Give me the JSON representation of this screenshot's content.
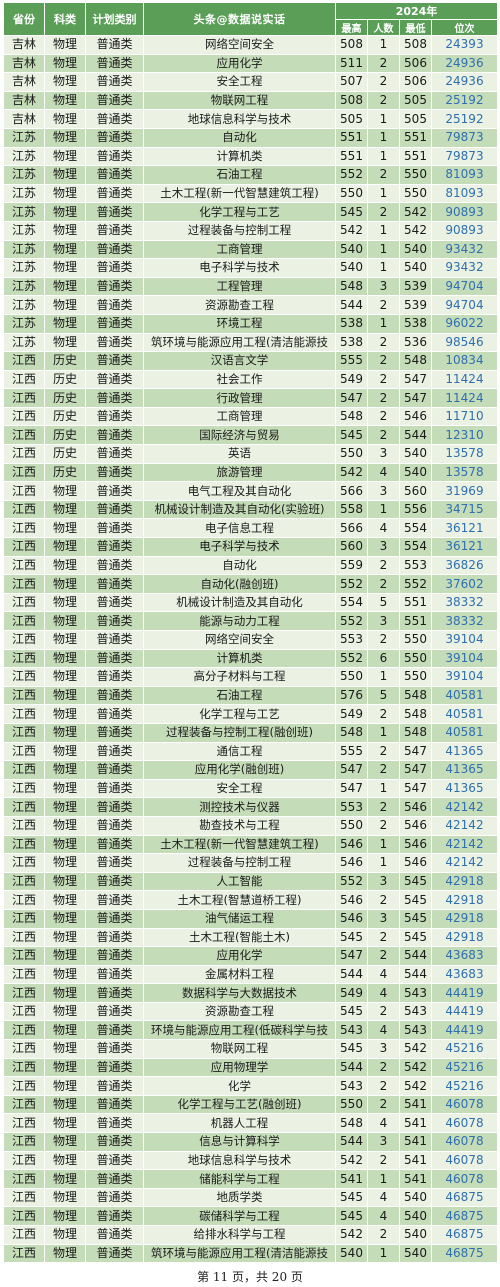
{
  "header": {
    "province": "省份",
    "subject": "科类",
    "plan_type": "计划类别",
    "title": "头条@数据说实话",
    "year": "2024年",
    "max": "最高",
    "count": "人数",
    "min": "最低",
    "rank": "位次"
  },
  "rows": [
    [
      "吉林",
      "物理",
      "普通类",
      "网络空间安全",
      "508",
      "1",
      "508",
      "24393"
    ],
    [
      "吉林",
      "物理",
      "普通类",
      "应用化学",
      "511",
      "2",
      "506",
      "24936"
    ],
    [
      "吉林",
      "物理",
      "普通类",
      "安全工程",
      "507",
      "2",
      "506",
      "24936"
    ],
    [
      "吉林",
      "物理",
      "普通类",
      "物联网工程",
      "508",
      "2",
      "505",
      "25192"
    ],
    [
      "吉林",
      "物理",
      "普通类",
      "地球信息科学与技术",
      "505",
      "1",
      "505",
      "25192"
    ],
    [
      "江苏",
      "物理",
      "普通类",
      "自动化",
      "551",
      "1",
      "551",
      "79873"
    ],
    [
      "江苏",
      "物理",
      "普通类",
      "计算机类",
      "551",
      "1",
      "551",
      "79873"
    ],
    [
      "江苏",
      "物理",
      "普通类",
      "石油工程",
      "552",
      "2",
      "550",
      "81093"
    ],
    [
      "江苏",
      "物理",
      "普通类",
      "土木工程(新一代智慧建筑工程)",
      "550",
      "1",
      "550",
      "81093"
    ],
    [
      "江苏",
      "物理",
      "普通类",
      "化学工程与工艺",
      "545",
      "2",
      "542",
      "90893"
    ],
    [
      "江苏",
      "物理",
      "普通类",
      "过程装备与控制工程",
      "542",
      "1",
      "542",
      "90893"
    ],
    [
      "江苏",
      "物理",
      "普通类",
      "工商管理",
      "540",
      "1",
      "540",
      "93432"
    ],
    [
      "江苏",
      "物理",
      "普通类",
      "电子科学与技术",
      "540",
      "1",
      "540",
      "93432"
    ],
    [
      "江苏",
      "物理",
      "普通类",
      "工程管理",
      "548",
      "3",
      "539",
      "94704"
    ],
    [
      "江苏",
      "物理",
      "普通类",
      "资源勘查工程",
      "544",
      "2",
      "539",
      "94704"
    ],
    [
      "江苏",
      "物理",
      "普通类",
      "环境工程",
      "538",
      "1",
      "538",
      "96022"
    ],
    [
      "江苏",
      "物理",
      "普通类",
      "筑环境与能源应用工程(清洁能源技",
      "538",
      "2",
      "536",
      "98546"
    ],
    [
      "江西",
      "历史",
      "普通类",
      "汉语言文学",
      "555",
      "2",
      "548",
      "10834"
    ],
    [
      "江西",
      "历史",
      "普通类",
      "社会工作",
      "549",
      "2",
      "547",
      "11424"
    ],
    [
      "江西",
      "历史",
      "普通类",
      "行政管理",
      "547",
      "2",
      "547",
      "11424"
    ],
    [
      "江西",
      "历史",
      "普通类",
      "工商管理",
      "548",
      "2",
      "546",
      "11710"
    ],
    [
      "江西",
      "历史",
      "普通类",
      "国际经济与贸易",
      "545",
      "2",
      "544",
      "12310"
    ],
    [
      "江西",
      "历史",
      "普通类",
      "英语",
      "550",
      "3",
      "540",
      "13578"
    ],
    [
      "江西",
      "历史",
      "普通类",
      "旅游管理",
      "542",
      "4",
      "540",
      "13578"
    ],
    [
      "江西",
      "物理",
      "普通类",
      "电气工程及其自动化",
      "566",
      "3",
      "560",
      "31969"
    ],
    [
      "江西",
      "物理",
      "普通类",
      "机械设计制造及其自动化(实验班)",
      "558",
      "1",
      "556",
      "34715"
    ],
    [
      "江西",
      "物理",
      "普通类",
      "电子信息工程",
      "566",
      "4",
      "554",
      "36121"
    ],
    [
      "江西",
      "物理",
      "普通类",
      "电子科学与技术",
      "560",
      "3",
      "554",
      "36121"
    ],
    [
      "江西",
      "物理",
      "普通类",
      "自动化",
      "559",
      "2",
      "553",
      "36826"
    ],
    [
      "江西",
      "物理",
      "普通类",
      "自动化(融创班)",
      "552",
      "2",
      "552",
      "37602"
    ],
    [
      "江西",
      "物理",
      "普通类",
      "机械设计制造及其自动化",
      "554",
      "5",
      "551",
      "38332"
    ],
    [
      "江西",
      "物理",
      "普通类",
      "能源与动力工程",
      "552",
      "3",
      "551",
      "38332"
    ],
    [
      "江西",
      "物理",
      "普通类",
      "网络空间安全",
      "553",
      "2",
      "550",
      "39104"
    ],
    [
      "江西",
      "物理",
      "普通类",
      "计算机类",
      "552",
      "6",
      "550",
      "39104"
    ],
    [
      "江西",
      "物理",
      "普通类",
      "高分子材料与工程",
      "550",
      "1",
      "550",
      "39104"
    ],
    [
      "江西",
      "物理",
      "普通类",
      "石油工程",
      "576",
      "5",
      "548",
      "40581"
    ],
    [
      "江西",
      "物理",
      "普通类",
      "化学工程与工艺",
      "549",
      "2",
      "548",
      "40581"
    ],
    [
      "江西",
      "物理",
      "普通类",
      "过程装备与控制工程(融创班)",
      "548",
      "1",
      "548",
      "40581"
    ],
    [
      "江西",
      "物理",
      "普通类",
      "通信工程",
      "555",
      "2",
      "547",
      "41365"
    ],
    [
      "江西",
      "物理",
      "普通类",
      "应用化学(融创班)",
      "547",
      "2",
      "547",
      "41365"
    ],
    [
      "江西",
      "物理",
      "普通类",
      "安全工程",
      "547",
      "1",
      "547",
      "41365"
    ],
    [
      "江西",
      "物理",
      "普通类",
      "测控技术与仪器",
      "553",
      "2",
      "546",
      "42142"
    ],
    [
      "江西",
      "物理",
      "普通类",
      "勘查技术与工程",
      "550",
      "2",
      "546",
      "42142"
    ],
    [
      "江西",
      "物理",
      "普通类",
      "土木工程(新一代智慧建筑工程)",
      "546",
      "1",
      "546",
      "42142"
    ],
    [
      "江西",
      "物理",
      "普通类",
      "过程装备与控制工程",
      "546",
      "1",
      "546",
      "42142"
    ],
    [
      "江西",
      "物理",
      "普通类",
      "人工智能",
      "552",
      "3",
      "545",
      "42918"
    ],
    [
      "江西",
      "物理",
      "普通类",
      "土木工程(智慧道桥工程)",
      "546",
      "2",
      "545",
      "42918"
    ],
    [
      "江西",
      "物理",
      "普通类",
      "油气储运工程",
      "546",
      "3",
      "545",
      "42918"
    ],
    [
      "江西",
      "物理",
      "普通类",
      "土木工程(智能土木)",
      "545",
      "2",
      "545",
      "42918"
    ],
    [
      "江西",
      "物理",
      "普通类",
      "应用化学",
      "547",
      "2",
      "544",
      "43683"
    ],
    [
      "江西",
      "物理",
      "普通类",
      "金属材料工程",
      "544",
      "4",
      "544",
      "43683"
    ],
    [
      "江西",
      "物理",
      "普通类",
      "数据科学与大数据技术",
      "549",
      "4",
      "543",
      "44419"
    ],
    [
      "江西",
      "物理",
      "普通类",
      "资源勘查工程",
      "545",
      "2",
      "543",
      "44419"
    ],
    [
      "江西",
      "物理",
      "普通类",
      "环境与能源应用工程(低碳科学与技",
      "543",
      "4",
      "543",
      "44419"
    ],
    [
      "江西",
      "物理",
      "普通类",
      "物联网工程",
      "545",
      "3",
      "542",
      "45216"
    ],
    [
      "江西",
      "物理",
      "普通类",
      "应用物理学",
      "544",
      "2",
      "542",
      "45216"
    ],
    [
      "江西",
      "物理",
      "普通类",
      "化学",
      "543",
      "2",
      "542",
      "45216"
    ],
    [
      "江西",
      "物理",
      "普通类",
      "化学工程与工艺(融创班)",
      "550",
      "2",
      "541",
      "46078"
    ],
    [
      "江西",
      "物理",
      "普通类",
      "机器人工程",
      "548",
      "4",
      "541",
      "46078"
    ],
    [
      "江西",
      "物理",
      "普通类",
      "信息与计算科学",
      "544",
      "3",
      "541",
      "46078"
    ],
    [
      "江西",
      "物理",
      "普通类",
      "地球信息科学与技术",
      "542",
      "2",
      "541",
      "46078"
    ],
    [
      "江西",
      "物理",
      "普通类",
      "储能科学与工程",
      "541",
      "1",
      "541",
      "46078"
    ],
    [
      "江西",
      "物理",
      "普通类",
      "地质学类",
      "545",
      "4",
      "540",
      "46875"
    ],
    [
      "江西",
      "物理",
      "普通类",
      "碳储科学与工程",
      "545",
      "4",
      "540",
      "46875"
    ],
    [
      "江西",
      "物理",
      "普通类",
      "给排水科学与工程",
      "542",
      "2",
      "540",
      "46875"
    ],
    [
      "江西",
      "物理",
      "普通类",
      "筑环境与能源应用工程(清洁能源技",
      "540",
      "1",
      "540",
      "46875"
    ]
  ],
  "footer": "第 11 页，共 20 页",
  "colors": {
    "header_bg": "#5a9e57",
    "row_light": "#ebf2e3",
    "row_dark": "#c5dcb8",
    "rank_text": "#2f6fb0"
  }
}
